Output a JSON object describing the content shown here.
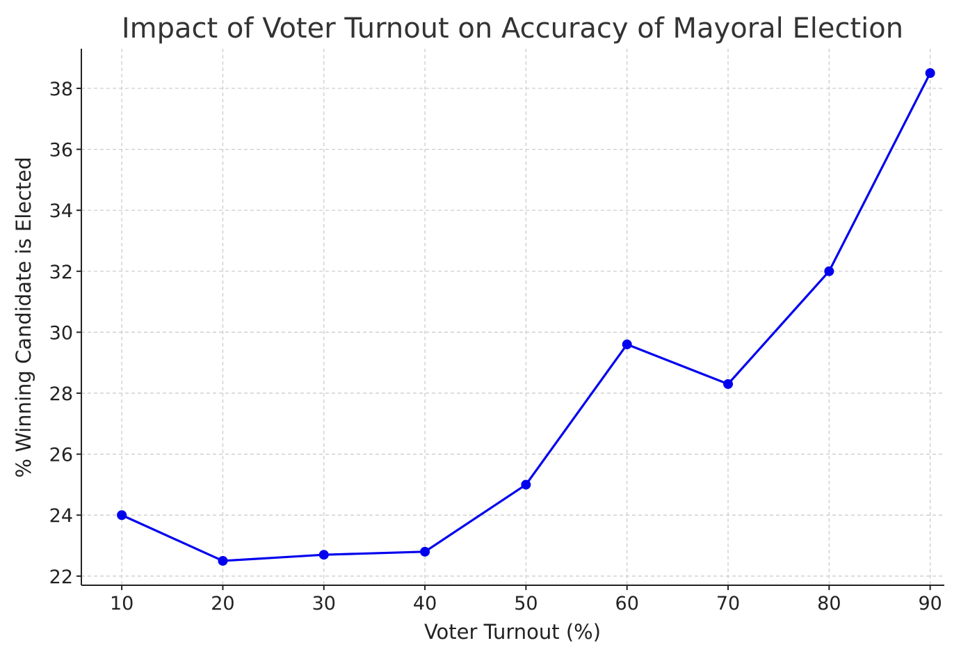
{
  "chart_data": {
    "type": "line",
    "title": "Impact of Voter Turnout on Accuracy of Mayoral Election",
    "xlabel": "Voter Turnout (%)",
    "ylabel": "% Winning Candidate is Elected",
    "x": [
      10,
      20,
      30,
      40,
      50,
      60,
      70,
      80,
      90
    ],
    "series": [
      {
        "values": [
          24.0,
          22.5,
          22.7,
          22.8,
          25.0,
          29.6,
          28.3,
          32.0,
          38.5
        ],
        "color": "#0000ee"
      }
    ],
    "x_ticks": [
      "10",
      "20",
      "30",
      "40",
      "50",
      "60",
      "70",
      "80",
      "90"
    ],
    "y_ticks": [
      "22",
      "24",
      "26",
      "28",
      "30",
      "32",
      "34",
      "36",
      "38"
    ],
    "xlim": [
      6,
      91.4
    ],
    "ylim": [
      21.7,
      39.3
    ],
    "grid": true,
    "marker": "circle"
  }
}
